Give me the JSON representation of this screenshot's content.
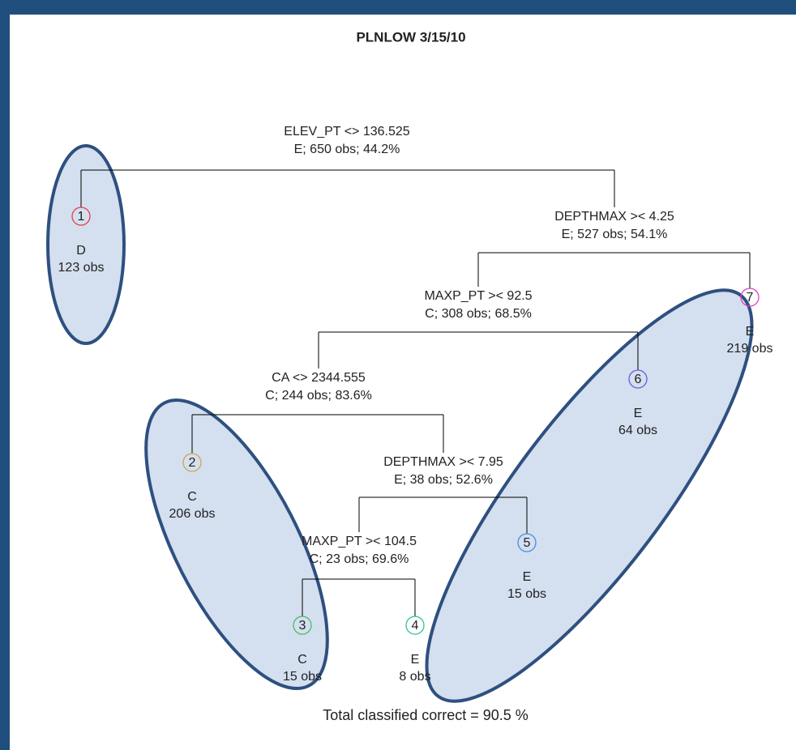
{
  "title": "PLNLOW 3/15/10",
  "splits": [
    {
      "rule": "ELEV_PT <> 136.525",
      "summary": "E; 650 obs; 44.2%"
    },
    {
      "rule": "DEPTHMAX >< 4.25",
      "summary": "E; 527 obs; 54.1%"
    },
    {
      "rule": "MAXP_PT >< 92.5",
      "summary": "C; 308 obs; 68.5%"
    },
    {
      "rule": "CA <> 2344.555",
      "summary": "C; 244 obs; 83.6%"
    },
    {
      "rule": "DEPTHMAX >< 7.95",
      "summary": "E; 38 obs; 52.6%"
    },
    {
      "rule": "MAXP_PT >< 104.5",
      "summary": "C; 23 obs; 69.6%"
    }
  ],
  "leaves": [
    {
      "id": "1",
      "class": "D",
      "obs": "123 obs",
      "color": "#e0404a"
    },
    {
      "id": "7",
      "class": "E",
      "obs": "219 obs",
      "color": "#e040c0"
    },
    {
      "id": "6",
      "class": "E",
      "obs": "64 obs",
      "color": "#6a5ae0"
    },
    {
      "id": "2",
      "class": "C",
      "obs": "206 obs",
      "color": "#c8a850"
    },
    {
      "id": "5",
      "class": "E",
      "obs": "15 obs",
      "color": "#4a8ae8"
    },
    {
      "id": "3",
      "class": "C",
      "obs": "15 obs",
      "color": "#40c060"
    },
    {
      "id": "4",
      "class": "E",
      "obs": "8 obs",
      "color": "#30c0a0"
    }
  ],
  "footer": "Total classified correct = 90.5 %"
}
